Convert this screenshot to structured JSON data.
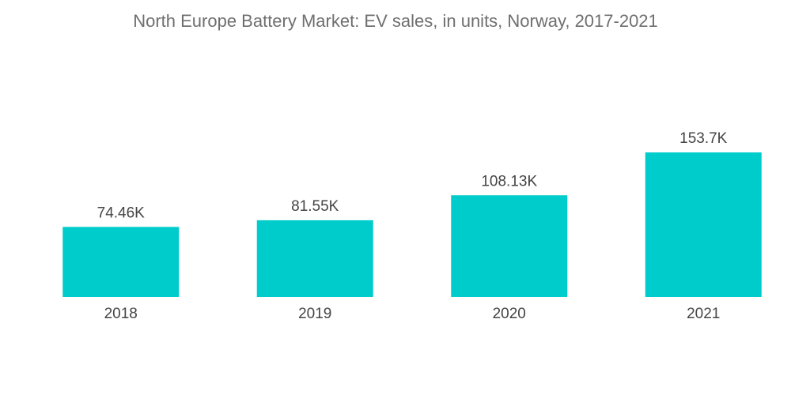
{
  "chart_data": {
    "type": "bar",
    "title": "North Europe Battery Market: EV sales, in units, Norway, 2017-2021",
    "categories": [
      "2018",
      "2019",
      "2020",
      "2021"
    ],
    "values": [
      74460,
      81550,
      108130,
      153700
    ],
    "value_labels": [
      "74.46K",
      "81.55K",
      "108.13K",
      "153.7K"
    ],
    "xlabel": "",
    "ylabel": "",
    "ylim": [
      0,
      153700
    ],
    "grid": false,
    "legend": "none",
    "bar_color": "#00CCCC"
  }
}
